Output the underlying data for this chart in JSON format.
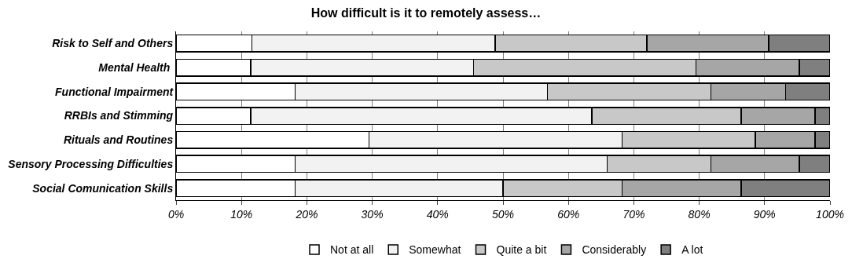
{
  "chart_data": {
    "type": "bar",
    "orientation": "horizontal",
    "stacked": true,
    "title": "How difficult is it to remotely assess…",
    "categories": [
      "Risk to Self and Others",
      "Mental Health ",
      "Functional Impairment",
      "RRBIs and Stimming",
      "Rituals and Routines",
      "Sensory Processing Difficulties",
      "Social Comunication Skills"
    ],
    "series": [
      {
        "name": "Not at all",
        "color": "#ffffff",
        "values": [
          11.6,
          11.4,
          18.2,
          11.4,
          29.5,
          18.2,
          18.2
        ]
      },
      {
        "name": "Somewhat",
        "color": "#f2f2f2",
        "values": [
          37.2,
          34.1,
          38.6,
          52.2,
          38.7,
          47.7,
          31.8
        ]
      },
      {
        "name": "Quite a bit",
        "color": "#c8c8c8",
        "values": [
          23.2,
          34.0,
          25.0,
          22.8,
          20.4,
          15.9,
          18.2
        ]
      },
      {
        "name": "Considerably",
        "color": "#a6a6a6",
        "values": [
          18.6,
          15.8,
          11.4,
          11.3,
          9.1,
          13.5,
          18.2
        ]
      },
      {
        "name": "A lot",
        "color": "#7f7f7f",
        "values": [
          9.4,
          4.7,
          6.8,
          2.3,
          2.3,
          4.7,
          13.6
        ]
      }
    ],
    "xlim": [
      0,
      100
    ],
    "xticks": [
      {
        "value": 0,
        "label": "0%"
      },
      {
        "value": 10,
        "label": "10%"
      },
      {
        "value": 20,
        "label": "20%"
      },
      {
        "value": 30,
        "label": "30%"
      },
      {
        "value": 40,
        "label": "40%"
      },
      {
        "value": 50,
        "label": "50%"
      },
      {
        "value": 60,
        "label": "60%"
      },
      {
        "value": 70,
        "label": "70%"
      },
      {
        "value": 80,
        "label": "80%"
      },
      {
        "value": 90,
        "label": "90%"
      },
      {
        "value": 100,
        "label": "100%"
      }
    ],
    "grid": "x",
    "legend": "bottom"
  }
}
